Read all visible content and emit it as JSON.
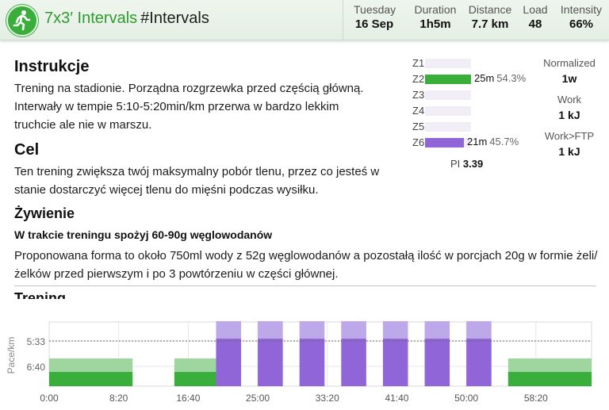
{
  "header": {
    "title": "7x3′ Intervals",
    "tag": "#Intervals",
    "sport_icon": "running-person-icon",
    "metrics": [
      {
        "label": "Tuesday",
        "value": "16 Sep"
      },
      {
        "label": "Duration",
        "value": "1h5m"
      },
      {
        "label": "Distance",
        "value": "7.7 km"
      },
      {
        "label": "Load",
        "value": "48"
      },
      {
        "label": "Intensity",
        "value": "66%"
      }
    ]
  },
  "description": {
    "instrukcje_heading": "Instrukcje",
    "instrukcje_text": "Trening na stadionie. Porządna rozgrzewka przed częścią główną. Interwały w tempie 5:10-5:20min/km przerwa w bardzo lekkim truchcie ale nie w marszu.",
    "cel_heading": "Cel",
    "cel_text": "Ten trening zwiększa twój maksymalny pobór tlenu, przez co jesteś w stanie dostarczyć więcej tlenu do mięśni podczas wysiłku.",
    "zywienie_heading": "Żywienie",
    "zywienie_sub": "W trakcie treningu spożyj 60-90g węglowodanów",
    "zywienie_text": "Proponowana forma to około 750ml wody z 52g węglowodanów a pozostałą ilość w porcjach 20g w formie żeli/żelków przed pierwszym i po 3 powtórzeniu w części głównej.",
    "trening_heading": "Trening"
  },
  "zones": [
    {
      "label": "Z1",
      "fraction": 0,
      "time": "",
      "pct": "",
      "color": ""
    },
    {
      "label": "Z2",
      "fraction": 0.543,
      "time": "25m",
      "pct": "54.3%",
      "color": "#3aae3a"
    },
    {
      "label": "Z3",
      "fraction": 0,
      "time": "",
      "pct": "",
      "color": ""
    },
    {
      "label": "Z4",
      "fraction": 0,
      "time": "",
      "pct": "",
      "color": ""
    },
    {
      "label": "Z5",
      "fraction": 0,
      "time": "",
      "pct": "",
      "color": ""
    },
    {
      "label": "Z6",
      "fraction": 0.457,
      "time": "21m",
      "pct": "45.7%",
      "color": "#8f65d8"
    }
  ],
  "pi": {
    "label": "PI",
    "value": "3.39"
  },
  "side_stats": [
    {
      "label": "Normalized",
      "value": "1w"
    },
    {
      "label": "Work",
      "value": "1 kJ"
    },
    {
      "label": "Work>FTP",
      "value": "1 kJ"
    }
  ],
  "chart_data": {
    "type": "bar",
    "ylabel": "Pace/km",
    "xlabel": "",
    "x_ticks": [
      "0:00",
      "8:20",
      "16:40",
      "25:00",
      "33:20",
      "41:40",
      "50:00",
      "58:20"
    ],
    "x_tick_seconds": [
      0,
      500,
      1000,
      1500,
      2000,
      2500,
      3000,
      3500
    ],
    "y_ticks": [
      "5:33",
      "6:40"
    ],
    "dashed_line_label": "5:33",
    "xlim_seconds": [
      0,
      3900
    ],
    "colors": {
      "easy": "#3aae3a",
      "easy_light": "#9fd69f",
      "interval": "#8f65d8",
      "interval_light": "#bda8ea"
    },
    "steps": [
      {
        "start": 0,
        "end": 600,
        "zone": "easy"
      },
      {
        "start": 900,
        "end": 1200,
        "zone": "easy"
      },
      {
        "start": 1200,
        "end": 1380,
        "zone": "interval"
      },
      {
        "start": 1500,
        "end": 1680,
        "zone": "interval"
      },
      {
        "start": 1800,
        "end": 1980,
        "zone": "interval"
      },
      {
        "start": 2100,
        "end": 2280,
        "zone": "interval"
      },
      {
        "start": 2400,
        "end": 2580,
        "zone": "interval"
      },
      {
        "start": 2700,
        "end": 2880,
        "zone": "interval"
      },
      {
        "start": 3000,
        "end": 3180,
        "zone": "interval"
      },
      {
        "start": 3300,
        "end": 3900,
        "zone": "easy"
      }
    ]
  }
}
